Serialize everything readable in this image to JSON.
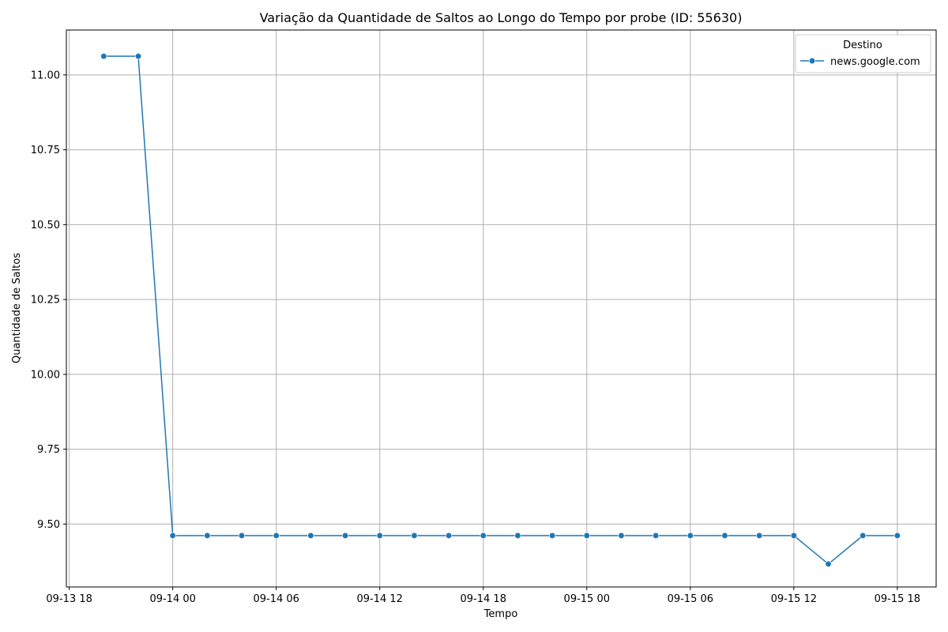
{
  "chart_data": {
    "type": "line",
    "title": "Variação da Quantidade de Saltos ao Longo do Tempo por probe (ID: 55630)",
    "xlabel": "Tempo",
    "ylabel": "Quantidade de Saltos",
    "x_tick_labels": [
      "09-13 18",
      "09-14 00",
      "09-14 06",
      "09-14 12",
      "09-14 18",
      "09-15 00",
      "09-15 06",
      "09-15 12",
      "09-15 18"
    ],
    "x_ticks": [
      "2024-09-13T18:00",
      "2024-09-14T00:00",
      "2024-09-14T06:00",
      "2024-09-14T12:00",
      "2024-09-14T18:00",
      "2024-09-15T00:00",
      "2024-09-15T06:00",
      "2024-09-15T12:00",
      "2024-09-15T18:00"
    ],
    "y_ticks": [
      9.5,
      9.75,
      10.0,
      10.25,
      10.5,
      10.75,
      11.0
    ],
    "y_tick_labels": [
      "9.50",
      "9.75",
      "10.00",
      "10.25",
      "10.50",
      "10.75",
      "11.00"
    ],
    "xlim": [
      "2024-09-13T17:50",
      "2024-09-15T20:15"
    ],
    "ylim": [
      9.29,
      11.15
    ],
    "grid": true,
    "legend": {
      "title": "Destino",
      "position": "top-right"
    },
    "series": [
      {
        "name": "news.google.com",
        "color": "#1f77b4",
        "marker": "circle",
        "points": [
          {
            "x": "2024-09-13T20:00",
            "y": 11.0625
          },
          {
            "x": "2024-09-13T22:00",
            "y": 11.0625
          },
          {
            "x": "2024-09-14T00:00",
            "y": 9.4615
          },
          {
            "x": "2024-09-14T02:00",
            "y": 9.4615
          },
          {
            "x": "2024-09-14T04:00",
            "y": 9.4615
          },
          {
            "x": "2024-09-14T06:00",
            "y": 9.4615
          },
          {
            "x": "2024-09-14T08:00",
            "y": 9.4615
          },
          {
            "x": "2024-09-14T10:00",
            "y": 9.4615
          },
          {
            "x": "2024-09-14T12:00",
            "y": 9.4615
          },
          {
            "x": "2024-09-14T14:00",
            "y": 9.4615
          },
          {
            "x": "2024-09-14T16:00",
            "y": 9.4615
          },
          {
            "x": "2024-09-14T18:00",
            "y": 9.4615
          },
          {
            "x": "2024-09-14T20:00",
            "y": 9.4615
          },
          {
            "x": "2024-09-14T22:00",
            "y": 9.4615
          },
          {
            "x": "2024-09-15T00:00",
            "y": 9.4615
          },
          {
            "x": "2024-09-15T02:00",
            "y": 9.4615
          },
          {
            "x": "2024-09-15T04:00",
            "y": 9.4615
          },
          {
            "x": "2024-09-15T06:00",
            "y": 9.4615
          },
          {
            "x": "2024-09-15T08:00",
            "y": 9.4615
          },
          {
            "x": "2024-09-15T10:00",
            "y": 9.4615
          },
          {
            "x": "2024-09-15T12:00",
            "y": 9.4615
          },
          {
            "x": "2024-09-15T14:00",
            "y": 9.3667
          },
          {
            "x": "2024-09-15T16:00",
            "y": 9.4615
          },
          {
            "x": "2024-09-15T18:00",
            "y": 9.4615
          }
        ]
      }
    ]
  }
}
